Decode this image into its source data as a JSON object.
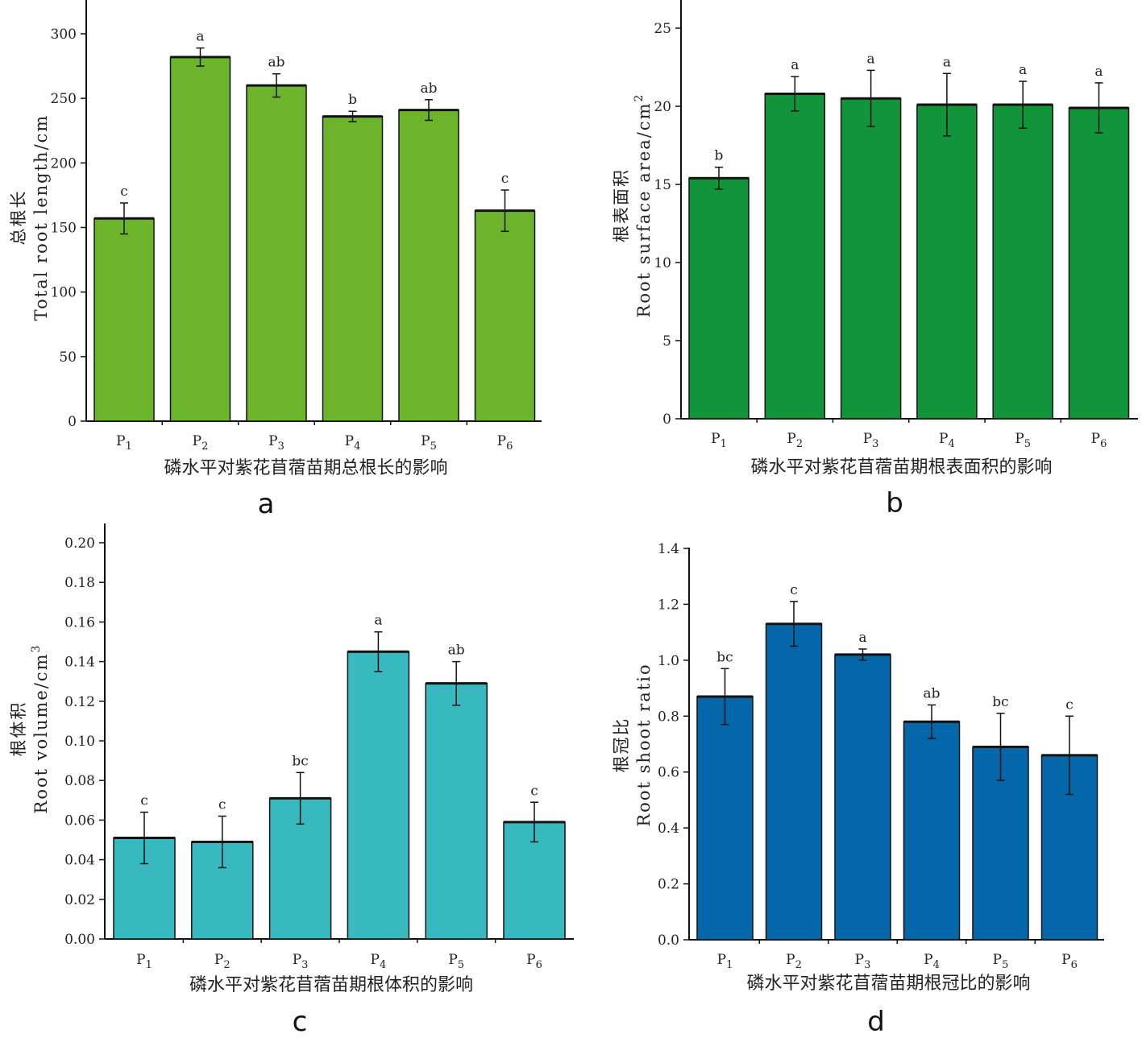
{
  "chart_data": [
    {
      "id": "a",
      "type": "bar",
      "panel_label": "a",
      "categories": [
        "P1",
        "P2",
        "P3",
        "P4",
        "P5",
        "P6"
      ],
      "values": [
        157,
        282,
        260,
        236,
        241,
        163
      ],
      "errors": [
        12,
        7,
        9,
        4,
        8,
        16
      ],
      "significance": [
        "c",
        "a",
        "ab",
        "b",
        "ab",
        "c"
      ],
      "xlabel": "磷水平对紫花苜蓿苗期总根长的影响",
      "ylabel": [
        "总根长",
        "Total root length/cm"
      ],
      "ylim": [
        0,
        300
      ],
      "yticks": [
        0,
        50,
        100,
        150,
        200,
        250,
        300
      ],
      "ytick_labels": [
        "0",
        "50",
        "100",
        "150",
        "200",
        "250",
        "300"
      ],
      "bar_color": "#6cb52b"
    },
    {
      "id": "b",
      "type": "bar",
      "panel_label": "b",
      "categories": [
        "P1",
        "P2",
        "P3",
        "P4",
        "P5",
        "P6"
      ],
      "values": [
        15.4,
        20.8,
        20.5,
        20.1,
        20.1,
        19.9
      ],
      "errors": [
        0.7,
        1.1,
        1.8,
        2.0,
        1.5,
        1.6
      ],
      "significance": [
        "b",
        "a",
        "a",
        "a",
        "a",
        "a"
      ],
      "xlabel": "磷水平对紫花苜蓿苗期根表面积的影响",
      "ylabel": [
        "根表面积",
        "Root surface area/cm",
        "2"
      ],
      "ylim": [
        0,
        25
      ],
      "yticks": [
        0,
        5,
        10,
        15,
        20,
        25
      ],
      "ytick_labels": [
        "0",
        "5",
        "10",
        "15",
        "20",
        "25"
      ],
      "bar_color": "#12953a"
    },
    {
      "id": "c",
      "type": "bar",
      "panel_label": "c",
      "categories": [
        "P1",
        "P2",
        "P3",
        "P4",
        "P5",
        "P6"
      ],
      "values": [
        0.051,
        0.049,
        0.071,
        0.145,
        0.129,
        0.059
      ],
      "errors": [
        0.013,
        0.013,
        0.013,
        0.01,
        0.011,
        0.01
      ],
      "significance": [
        "c",
        "c",
        "bc",
        "a",
        "ab",
        "c"
      ],
      "xlabel": "磷水平对紫花苜蓿苗期根体积的影响",
      "ylabel": [
        "根体积",
        "Root volume/cm",
        "3"
      ],
      "ylim": [
        0,
        0.2
      ],
      "yticks": [
        0,
        0.02,
        0.04,
        0.06,
        0.08,
        0.1,
        0.12,
        0.14,
        0.16,
        0.18,
        0.2
      ],
      "ytick_labels": [
        "0.00",
        "0.02",
        "0.04",
        "0.06",
        "0.08",
        "0.10",
        "0.12",
        "0.14",
        "0.16",
        "0.18",
        "0.20"
      ],
      "bar_color": "#38b9c0"
    },
    {
      "id": "d",
      "type": "bar",
      "panel_label": "d",
      "categories": [
        "P1",
        "P2",
        "P3",
        "P4",
        "P5",
        "P6"
      ],
      "values": [
        0.87,
        1.13,
        1.02,
        0.78,
        0.69,
        0.66
      ],
      "errors": [
        0.1,
        0.08,
        0.02,
        0.06,
        0.12,
        0.14
      ],
      "significance": [
        "bc",
        "c",
        "a",
        "ab",
        "bc",
        "c"
      ],
      "xlabel": "磷水平对紫花苜蓿苗期根冠比的影响",
      "ylabel": [
        "根冠比",
        "Root shoot ratio"
      ],
      "ylim": [
        0,
        1.4
      ],
      "yticks": [
        0,
        0.2,
        0.4,
        0.6,
        0.8,
        1.0,
        1.2,
        1.4
      ],
      "ytick_labels": [
        "0.0",
        "0.2",
        "0.4",
        "0.6",
        "0.8",
        "1.0",
        "1.2",
        "1.4"
      ],
      "bar_color": "#0467a9"
    }
  ]
}
